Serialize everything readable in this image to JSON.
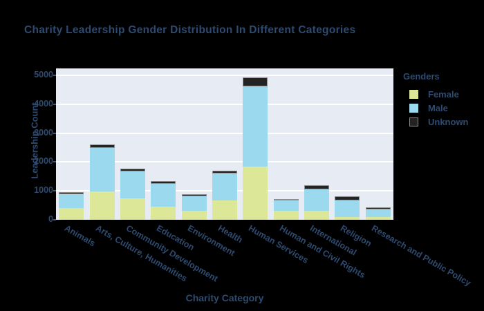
{
  "title": "Charity Leadership Gender Distribution In Different Categories",
  "colors": {
    "background": "#000000",
    "plot_background": "#e7ebf4",
    "gridline": "#ffffff",
    "text": "#2e4b6f",
    "female": "#dce897",
    "male": "#9bd9ee",
    "unknown": "#232323",
    "unknown_border": "#8e8e8e"
  },
  "chart_data": {
    "type": "bar",
    "stacked": true,
    "title": "Charity Leadership Gender Distribution In Different Categories",
    "xlabel": "Charity Category",
    "ylabel": "Leadership Count",
    "legend_title": "Genders",
    "legend_position": "right",
    "grid": true,
    "ylim": [
      0,
      5240
    ],
    "yticks": [
      0,
      1000,
      2000,
      3000,
      4000,
      5000
    ],
    "categories": [
      "Animals",
      "Arts, Culture, Humanities",
      "Community Development",
      "Education",
      "Environment",
      "Health",
      "Human Services",
      "Human and Civil Rights",
      "International",
      "Religion",
      "Research and Public Policy"
    ],
    "series": [
      {
        "name": "Female",
        "color": "#dce897",
        "border": "",
        "values": [
          400,
          980,
          740,
          460,
          300,
          670,
          1850,
          300,
          320,
          90,
          90
        ]
      },
      {
        "name": "Male",
        "color": "#9bd9ee",
        "border": "",
        "values": [
          480,
          1500,
          940,
          780,
          520,
          930,
          2760,
          360,
          740,
          570,
          280
        ]
      },
      {
        "name": "Unknown",
        "color": "#232323",
        "border": "#8e8e8e",
        "values": [
          80,
          140,
          100,
          100,
          60,
          110,
          330,
          65,
          140,
          160,
          70
        ]
      }
    ]
  }
}
